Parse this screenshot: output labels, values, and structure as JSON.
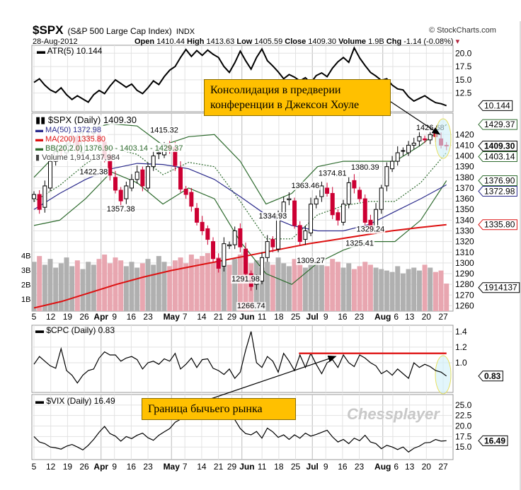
{
  "header": {
    "symbol": "$SPX",
    "name": "(S&P 500 Large Cap Index)",
    "exchange": "INDX",
    "source": "© StockCharts.com",
    "date": "28-Aug-2012",
    "open_label": "Open",
    "open": "1410.44",
    "high_label": "High",
    "high": "1413.63",
    "low_label": "Low",
    "low": "1405.59",
    "close_label": "Close",
    "close": "1409.30",
    "volume_label": "Volume",
    "volume": "1.9B",
    "chg_label": "Chg",
    "chg": "-1.14 (-0.08%)"
  },
  "annotations": {
    "box1": "Консолидация в предверии конференции в Джексон Хоуле",
    "box2": "Граница бычьего рынка",
    "watermark": "Chessplayer"
  },
  "colors": {
    "up": "#000000",
    "down": "#CC0033",
    "ma50": "#2B2B8C",
    "ma200": "#DD1111",
    "bb": "#2E6B2E",
    "volume_up": "#B0B0B0",
    "volume_down": "#E8A6B0",
    "annotation": "#FFC000",
    "highlight": "#CFF0F8",
    "redline": "#E02020"
  },
  "chart_data": [
    {
      "type": "line",
      "title": "ATR(5) 10.144",
      "legend": "ATR(5) 10.144",
      "ylim": [
        9,
        21.5
      ],
      "yticks": [
        20.0,
        17.5,
        15.0,
        12.5
      ],
      "last_tag": "10.144",
      "values": [
        14.5,
        15.2,
        14.0,
        13.1,
        12.6,
        13.5,
        12.2,
        11.3,
        12.0,
        11.4,
        10.8,
        12.2,
        13.0,
        12.4,
        13.8,
        15.0,
        14.3,
        13.6,
        14.2,
        13.0,
        12.4,
        13.5,
        14.8,
        14.1,
        15.6,
        16.8,
        17.5,
        19.2,
        20.7,
        19.4,
        20.5,
        19.6,
        20.6,
        19.8,
        19.2,
        17.5,
        16.4,
        18.2,
        20.4,
        18.6,
        17.0,
        19.2,
        20.8,
        18.6,
        17.6,
        16.5,
        15.2,
        16.0,
        15.5,
        14.8,
        15.4,
        14.4,
        15.8,
        16.3,
        15.6,
        17.2,
        18.4,
        19.2,
        18.3,
        21.0,
        19.1,
        17.7,
        16.4,
        15.7,
        14.9,
        15.2,
        14.0,
        13.3,
        13.1,
        11.8,
        11.0,
        11.5,
        12.0,
        11.3,
        10.7,
        10.5,
        10.144
      ]
    },
    {
      "type": "candlestick",
      "legend": {
        "title": "$SPX (Daily) 1409.30",
        "ma50": "MA(50) 1372.98",
        "ma200": "MA(200) 1335.80",
        "bb": "BB(20,2.0) 1376.90 - 1403.14 - 1429.37",
        "volume": "Volume 1,914,137,984"
      },
      "ylim": [
        1255,
        1440
      ],
      "yticks": [
        1260,
        1270,
        1280,
        1290,
        1300,
        1310,
        1320,
        1330,
        1340,
        1350,
        1360,
        1370,
        1380,
        1390,
        1400,
        1410,
        1420
      ],
      "volume_ticks": [
        "1B",
        "2B",
        "3B",
        "4B"
      ],
      "closes": [
        1364,
        1350,
        1372,
        1395,
        1404,
        1405,
        1410,
        1416,
        1405,
        1418,
        1419,
        1422,
        1413,
        1398,
        1382,
        1368,
        1358,
        1372,
        1378,
        1385,
        1372,
        1390,
        1400,
        1403,
        1410,
        1406,
        1391,
        1369,
        1364,
        1353,
        1338,
        1330,
        1322,
        1304,
        1295,
        1318,
        1317,
        1330,
        1315,
        1290,
        1278,
        1285,
        1305,
        1320,
        1315,
        1345,
        1357,
        1360,
        1335,
        1320,
        1330,
        1355,
        1360,
        1372,
        1365,
        1345,
        1340,
        1355,
        1375,
        1370,
        1360,
        1338,
        1332,
        1350,
        1370,
        1390,
        1395,
        1403,
        1405,
        1410,
        1412,
        1418,
        1415,
        1420,
        1418,
        1410,
        1409.3
      ],
      "volume_b": [
        3.4,
        3.8,
        3.2,
        3.6,
        3.0,
        3.3,
        3.7,
        3.1,
        3.5,
        2.9,
        3.4,
        3.2,
        3.6,
        3.9,
        3.3,
        3.7,
        3.5,
        3.1,
        3.4,
        3.0,
        3.3,
        3.6,
        3.2,
        3.8,
        3.4,
        3.1,
        3.5,
        3.7,
        3.3,
        3.9,
        3.6,
        3.8,
        4.0,
        3.4,
        3.7,
        3.5,
        3.2,
        3.6,
        3.9,
        4.1,
        3.3,
        3.5,
        3.0,
        3.4,
        3.2,
        3.7,
        3.3,
        3.1,
        3.6,
        3.4,
        3.0,
        3.3,
        3.5,
        3.2,
        3.1,
        3.6,
        3.4,
        3.0,
        3.3,
        2.9,
        3.1,
        3.4,
        3.2,
        3.0,
        2.9,
        2.8,
        2.7,
        3.1,
        2.6,
        2.9,
        3.0,
        2.8,
        3.2,
        3.0,
        2.7,
        2.8,
        1.9
      ],
      "ma50": [
        1350,
        1365,
        1378,
        1388,
        1393,
        1392,
        1388,
        1378,
        1362,
        1345,
        1335,
        1330,
        1330,
        1336,
        1348,
        1360,
        1372.98
      ],
      "ma200": [
        1258,
        1264,
        1272,
        1280,
        1287,
        1293,
        1298,
        1303,
        1308,
        1313,
        1318,
        1322,
        1326,
        1330,
        1333,
        1335.8
      ],
      "bb_upper": [
        1380,
        1405,
        1425,
        1430,
        1428,
        1410,
        1418,
        1420,
        1395,
        1355,
        1365,
        1390,
        1395,
        1395,
        1395,
        1410,
        1429.37
      ],
      "bb_lower": [
        1335,
        1340,
        1360,
        1385,
        1375,
        1355,
        1370,
        1360,
        1320,
        1290,
        1280,
        1300,
        1312,
        1320,
        1320,
        1340,
        1376.9
      ],
      "point_labels": [
        {
          "i": 11,
          "text": "1422.38"
        },
        {
          "i": 16,
          "text": "1357.38"
        },
        {
          "i": 24,
          "text": "1415.32"
        },
        {
          "i": 39,
          "text": "1291.98"
        },
        {
          "i": 44,
          "text": "1334.93"
        },
        {
          "i": 40,
          "text": "1266.74"
        },
        {
          "i": 50,
          "text": "1363.46"
        },
        {
          "i": 51,
          "text": "1309.27"
        },
        {
          "i": 55,
          "text": "1374.81"
        },
        {
          "i": 60,
          "text": "1325.41"
        },
        {
          "i": 61,
          "text": "1380.39"
        },
        {
          "i": 62,
          "text": "1329.24"
        },
        {
          "i": 73,
          "text": "1426.68"
        }
      ],
      "label_prices": [
        1422.38,
        1357.38,
        1415.32,
        1291.98,
        1334.93,
        1266.74,
        1363.46,
        1309.27,
        1374.81,
        1325.41,
        1380.39,
        1329.24,
        1426.68
      ],
      "tags": [
        {
          "text": "1429.37",
          "v": 1429.37,
          "c": "bb"
        },
        {
          "text": "1409.30",
          "v": 1409.3,
          "c": "close"
        },
        {
          "text": "1403.14",
          "v": 1403.14,
          "c": "bb"
        },
        {
          "text": "1376.90",
          "v": 1376.9,
          "c": "bb"
        },
        {
          "text": "1372.98",
          "v": 1372.98,
          "c": "ma50"
        },
        {
          "text": "1335.80",
          "v": 1335.8,
          "c": "ma200"
        },
        {
          "text": "1914137",
          "v": 1277,
          "c": "close"
        }
      ]
    },
    {
      "type": "line",
      "legend": "$CPC (Daily) 0.83",
      "ylim": [
        0.62,
        1.48
      ],
      "yticks": [
        1.4,
        1.2,
        1.0
      ],
      "last_tag": "0.83",
      "resistance": 1.12,
      "values": [
        0.98,
        1.08,
        1.02,
        0.96,
        0.93,
        1.18,
        0.9,
        0.84,
        0.74,
        0.84,
        0.9,
        0.92,
        1.06,
        1.14,
        1.1,
        1.1,
        1.02,
        1.06,
        1.08,
        1.04,
        0.92,
        1.0,
        1.02,
        0.98,
        1.05,
        1.02,
        1.12,
        0.92,
        0.98,
        1.06,
        0.94,
        1.04,
        1.05,
        0.93,
        0.9,
        0.85,
        0.92,
        0.8,
        0.88,
        1.16,
        1.4,
        1.0,
        0.94,
        1.08,
        1.02,
        0.88,
        1.12,
        1.02,
        0.9,
        1.1,
        0.94,
        1.12,
        0.98,
        0.86,
        1.0,
        1.04,
        0.94,
        1.1,
        1.0,
        0.95,
        1.1,
        1.06,
        1.0,
        0.96,
        0.86,
        0.9,
        0.84,
        0.92,
        0.86,
        0.8,
        1.0,
        0.94,
        0.98,
        0.95,
        0.9,
        0.88,
        0.83
      ]
    },
    {
      "type": "line",
      "legend": "$VIX (Daily) 16.49",
      "ylim": [
        12,
        27.5
      ],
      "yticks": [
        25.0,
        22.5,
        20.0,
        17.5,
        15.0
      ],
      "last_tag": "16.49",
      "values": [
        17.5,
        16.2,
        15.8,
        15.0,
        14.8,
        14.5,
        15.2,
        15.6,
        15.0,
        14.3,
        15.4,
        16.8,
        18.5,
        19.9,
        18.2,
        17.6,
        16.4,
        17.5,
        17.0,
        17.8,
        18.3,
        17.2,
        16.6,
        17.8,
        18.6,
        19.4,
        20.9,
        21.6,
        22.4,
        24.5,
        22.2,
        23.8,
        22.0,
        24.2,
        26.6,
        24.0,
        22.0,
        21.5,
        19.4,
        18.2,
        17.9,
        18.7,
        17.1,
        19.5,
        18.6,
        17.3,
        17.9,
        16.8,
        17.9,
        17.1,
        18.3,
        17.6,
        18.0,
        18.5,
        19.0,
        17.4,
        16.2,
        16.8,
        15.8,
        17.1,
        16.5,
        17.8,
        16.2,
        15.8,
        14.6,
        15.4,
        15.0,
        14.4,
        15.0,
        13.8,
        14.7,
        15.2,
        16.0,
        16.1,
        16.8,
        16.4,
        16.49
      ]
    }
  ],
  "x_axis": {
    "ticks": [
      {
        "t": "5",
        "d": 0
      },
      {
        "t": "12",
        "d": 5
      },
      {
        "t": "19",
        "d": 10
      },
      {
        "t": "26",
        "d": 15
      },
      {
        "t": "Apr",
        "d": 20,
        "b": 1
      },
      {
        "t": "9",
        "d": 24
      },
      {
        "t": "16",
        "d": 29
      },
      {
        "t": "23",
        "d": 34
      },
      {
        "t": "May",
        "d": 41,
        "b": 1
      },
      {
        "t": "7",
        "d": 45
      },
      {
        "t": "14",
        "d": 50
      },
      {
        "t": "21",
        "d": 55
      },
      {
        "t": "29",
        "d": 59
      },
      {
        "t": "Jun",
        "d": 62,
        "b": 1
      },
      {
        "t": "11",
        "d": 68
      },
      {
        "t": "18",
        "d": 73
      },
      {
        "t": "25",
        "d": 78
      },
      {
        "t": "Jul",
        "d": 83,
        "b": 1
      },
      {
        "t": "9",
        "d": 87
      },
      {
        "t": "16",
        "d": 92
      },
      {
        "t": "23",
        "d": 97
      },
      {
        "t": "Aug",
        "d": 104,
        "b": 1
      },
      {
        "t": "6",
        "d": 107
      },
      {
        "t": "13",
        "d": 112
      },
      {
        "t": "20",
        "d": 117
      },
      {
        "t": "27",
        "d": 122
      }
    ],
    "last_day": 123
  }
}
